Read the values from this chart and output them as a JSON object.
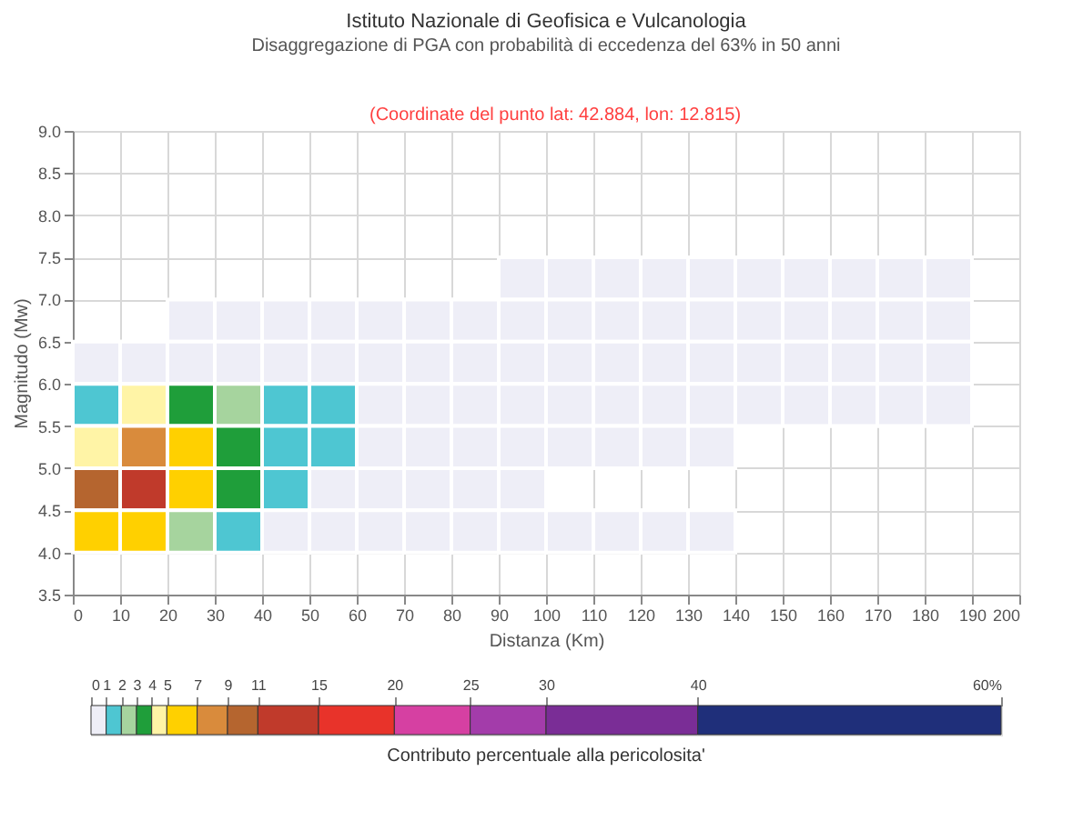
{
  "chart_data": {
    "type": "heatmap",
    "title": "Istituto Nazionale di Geofisica e Vulcanologia",
    "subtitle": "Disaggregazione di PGA con probabilità di eccedenza del 63% in 50 anni",
    "annotations": [
      "(Coordinate del punto lat: 42.884, lon: 12.815)"
    ],
    "xlabel": "Distanza (Km)",
    "ylabel": "Magnitudo (Mw)",
    "clabel": "Contributo percentuale alla pericolosita'",
    "x": [
      5,
      15,
      25,
      35,
      45,
      55,
      65,
      75,
      85,
      95,
      105,
      115,
      125,
      135,
      145,
      155,
      165,
      175,
      185,
      195
    ],
    "y": [
      7.25,
      6.75,
      6.25,
      5.75,
      5.25,
      4.75,
      4.25
    ],
    "xlim": [
      0,
      200
    ],
    "xticks": [
      0,
      10,
      20,
      30,
      40,
      50,
      60,
      70,
      80,
      90,
      100,
      110,
      120,
      130,
      140,
      150,
      160,
      170,
      180,
      190,
      200
    ],
    "ylim": [
      3.5,
      9.0
    ],
    "yticks": [
      3.5,
      {
        "value": 4,
        "label": "4.0"
      },
      4.5,
      {
        "value": 5,
        "label": "5.0"
      },
      5.5,
      {
        "value": 6,
        "label": "6.0"
      },
      6.5,
      {
        "value": 7,
        "label": "7.0"
      },
      7.5,
      {
        "value": 8,
        "label": "8.0"
      },
      8.5,
      {
        "value": 9,
        "label": "9.0"
      }
    ],
    "grid": true,
    "cells": [
      [
        null,
        null,
        null,
        null,
        null,
        null,
        null,
        null,
        null,
        0.5,
        0.5,
        0.5,
        0.5,
        0.5,
        0.5,
        0.5,
        0.5,
        0.5,
        0.5,
        null
      ],
      [
        null,
        null,
        0.5,
        0.5,
        0.5,
        0.5,
        0.5,
        0.5,
        0.5,
        0.5,
        0.5,
        0.5,
        0.5,
        0.5,
        0.5,
        0.5,
        0.5,
        0.5,
        0.5,
        null
      ],
      [
        0.5,
        0.5,
        0.5,
        0.5,
        0.5,
        0.5,
        0.5,
        0.5,
        0.5,
        0.5,
        0.5,
        0.5,
        0.5,
        0.5,
        0.5,
        0.5,
        0.5,
        0.5,
        0.5,
        null
      ],
      [
        1.5,
        4.5,
        3.5,
        2.5,
        1.5,
        1.5,
        0.5,
        0.5,
        0.5,
        0.5,
        0.5,
        0.5,
        0.5,
        0.5,
        0.5,
        0.5,
        0.5,
        0.5,
        0.5,
        null
      ],
      [
        4.5,
        8,
        6,
        3.5,
        1.5,
        1.5,
        0.5,
        0.5,
        0.5,
        0.5,
        0.5,
        0.5,
        0.5,
        0.5,
        null,
        null,
        null,
        null,
        null,
        null
      ],
      [
        10,
        13,
        6,
        3.5,
        1.5,
        0.5,
        0.5,
        0.5,
        0.5,
        0.5,
        null,
        null,
        null,
        null,
        null,
        null,
        null,
        null,
        null,
        null
      ],
      [
        6,
        6,
        2.5,
        1.5,
        0.5,
        0.5,
        0.5,
        0.5,
        0.5,
        0.5,
        0.5,
        0.5,
        0.5,
        0.5,
        null,
        null,
        null,
        null,
        null,
        null
      ]
    ],
    "clim": [
      0,
      60
    ],
    "cticks": [
      0,
      1,
      2,
      3,
      4,
      5,
      7,
      9,
      11,
      15,
      20,
      25,
      30,
      40,
      {
        "value": 60,
        "label": "60%"
      }
    ],
    "colors": [
      "#eeeef7",
      "#4ec6d2",
      "#a6d49e",
      "#1f9e3a",
      "#fff4a6",
      "#ffd000",
      "#d98b3c",
      "#b5652f",
      "#c03a2b",
      "#e8332a",
      "#d640a2",
      "#a33caa",
      "#7a2d96",
      "#1f2f7a"
    ]
  }
}
